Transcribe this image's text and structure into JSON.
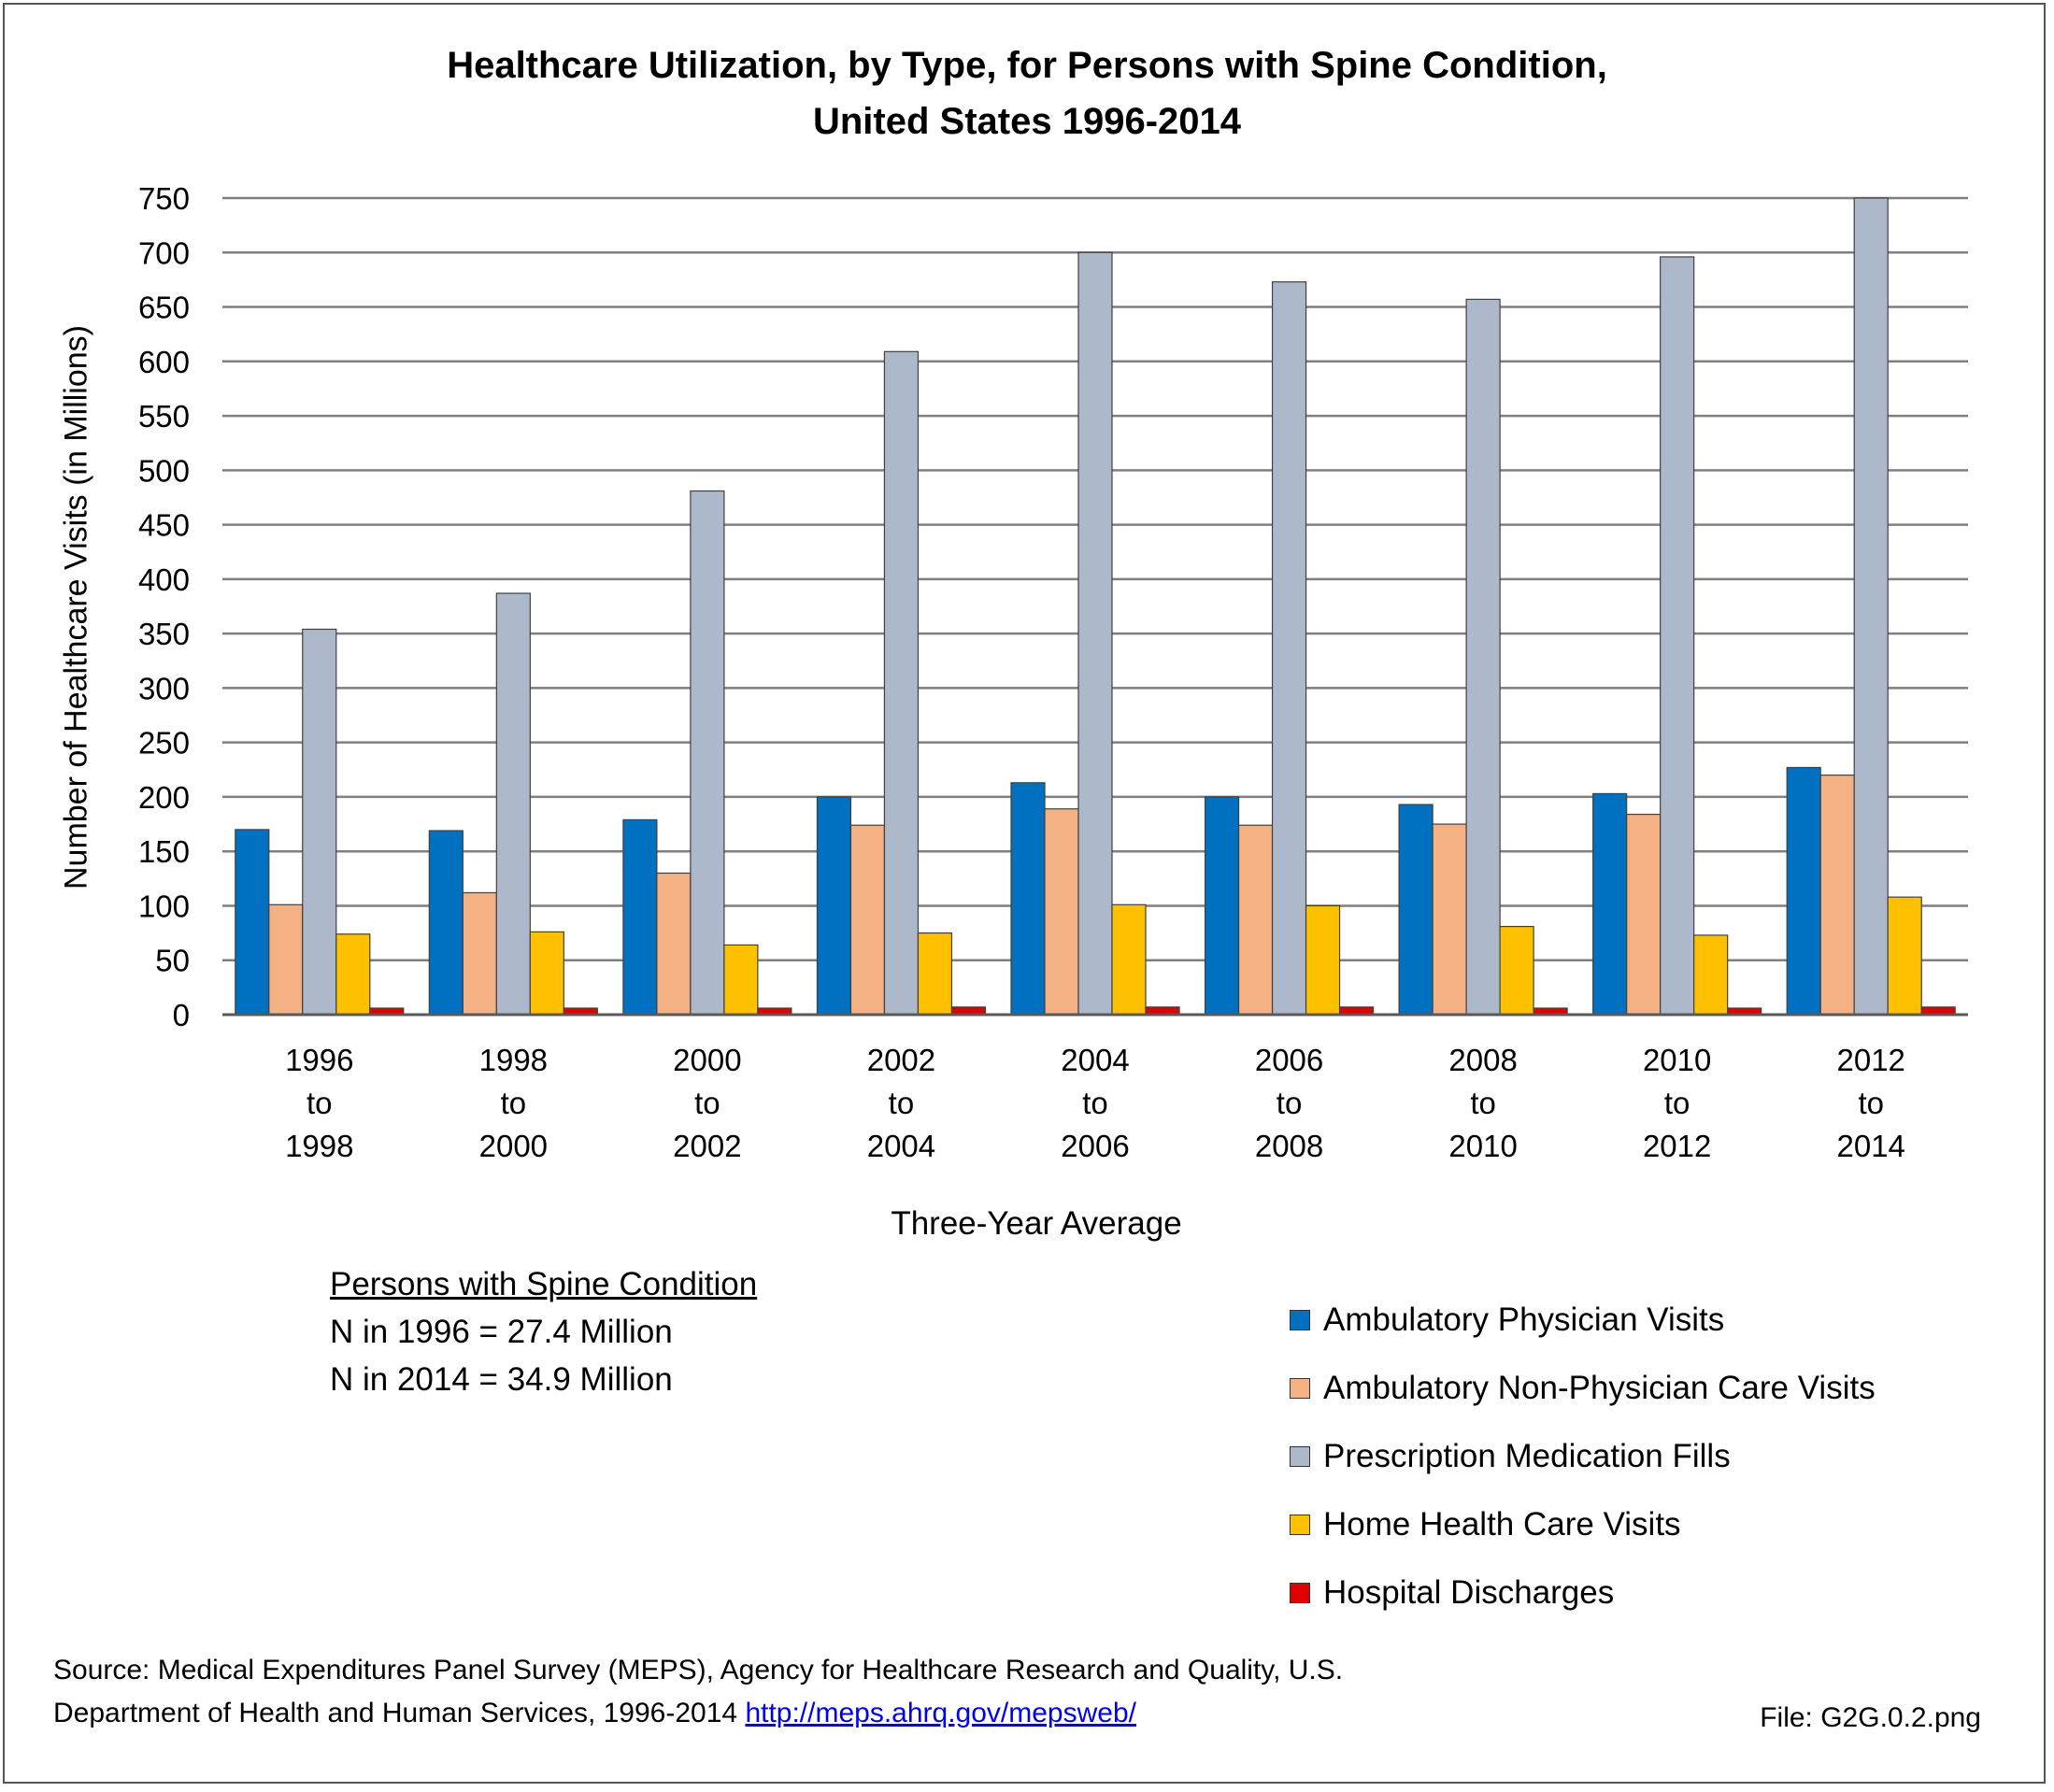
{
  "chart_data": {
    "type": "bar",
    "title_line1": "Healthcare Utilization, by Type, for Persons with Spine Condition,",
    "title_line2": "United States 1996-2014",
    "ylabel": "Number of Healthcare Visits (in Millions)",
    "xlabel": "Three-Year Average",
    "ylim": [
      0,
      750
    ],
    "yticks": [
      0,
      50,
      100,
      150,
      200,
      250,
      300,
      350,
      400,
      450,
      500,
      550,
      600,
      650,
      700,
      750
    ],
    "grid": true,
    "legend_position": "bottom-right",
    "categories": [
      [
        "1996",
        "to",
        "1998"
      ],
      [
        "1998",
        "to",
        "2000"
      ],
      [
        "2000",
        "to",
        "2002"
      ],
      [
        "2002",
        "to",
        "2004"
      ],
      [
        "2004",
        "to",
        "2006"
      ],
      [
        "2006",
        "to",
        "2008"
      ],
      [
        "2008",
        "to",
        "2010"
      ],
      [
        "2010",
        "to",
        "2012"
      ],
      [
        "2012",
        "to",
        "2014"
      ]
    ],
    "series": [
      {
        "name": "Ambulatory Physician Visits",
        "color": "#0070c0",
        "values": [
          170,
          169,
          179,
          200,
          213,
          200,
          193,
          203,
          227
        ]
      },
      {
        "name": "Ambulatory Non-Physician Care Visits",
        "color": "#f4b183",
        "values": [
          101,
          112,
          130,
          174,
          189,
          174,
          175,
          184,
          220
        ]
      },
      {
        "name": "Prescription Medication Fills",
        "color": "#adb9ca",
        "values": [
          354,
          387,
          481,
          609,
          700,
          673,
          657,
          696,
          750
        ]
      },
      {
        "name": "Home Health Care Visits",
        "color": "#ffc000",
        "values": [
          74,
          76,
          64,
          75,
          101,
          100,
          81,
          73,
          108
        ]
      },
      {
        "name": "Hospital Discharges",
        "color": "#e00000",
        "values": [
          6,
          6,
          6,
          7,
          7,
          7,
          6,
          6,
          7
        ]
      }
    ]
  },
  "note": {
    "heading": "Persons with Spine Condition",
    "line1": "N in 1996 = 27.4 Million",
    "line2": "N in 2014 = 34.9 Million"
  },
  "source": {
    "line1": "Source: Medical Expenditures Panel Survey (MEPS), Agency for Healthcare Research and Quality, U.S.",
    "line2": "Department of Health and Human Services, 1996-2014",
    "link": "http://meps.ahrq.gov/mepsweb/"
  },
  "file_label": "File: G2G.0.2.png"
}
